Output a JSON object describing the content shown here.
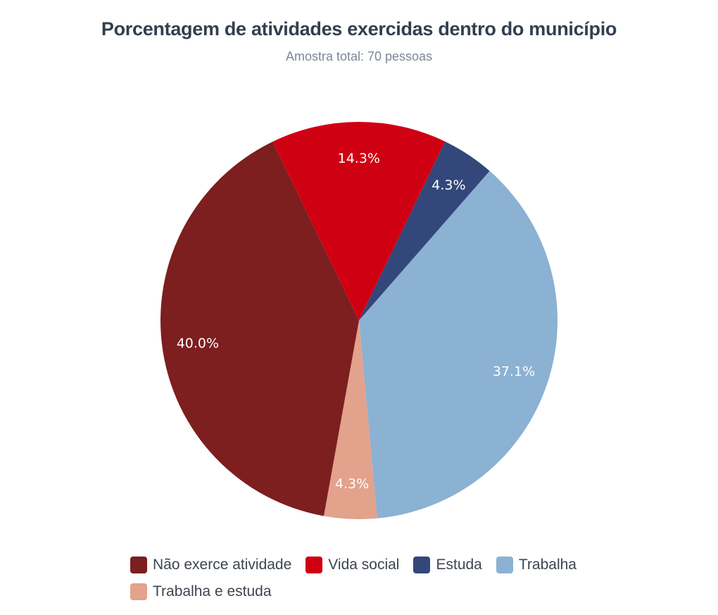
{
  "chart_data": {
    "type": "pie",
    "title": "Porcentagem de atividades exercidas dentro do município",
    "subtitle": "Amostra total: 70 pessoas",
    "slices": [
      {
        "name": "Vida social",
        "value": 14.3,
        "label": "14.3%",
        "color": "#d00013"
      },
      {
        "name": "Estuda",
        "value": 4.3,
        "label": "4.3%",
        "color": "#33477b"
      },
      {
        "name": "Trabalha",
        "value": 37.1,
        "label": "37.1%",
        "color": "#8bb1d3"
      },
      {
        "name": "Trabalha e estuda",
        "value": 4.3,
        "label": "4.3%",
        "color": "#e3a28b"
      },
      {
        "name": "Não exerce atividade",
        "value": 40.0,
        "label": "40.0%",
        "color": "#7d1e1f"
      }
    ],
    "legend": [
      {
        "name": "Não exerce atividade",
        "color": "#7d1e1f"
      },
      {
        "name": "Vida social",
        "color": "#d00013"
      },
      {
        "name": "Estuda",
        "color": "#33477b"
      },
      {
        "name": "Trabalha",
        "color": "#8bb1d3"
      },
      {
        "name": "Trabalha e estuda",
        "color": "#e3a28b"
      }
    ],
    "legend_position": "bottom"
  }
}
